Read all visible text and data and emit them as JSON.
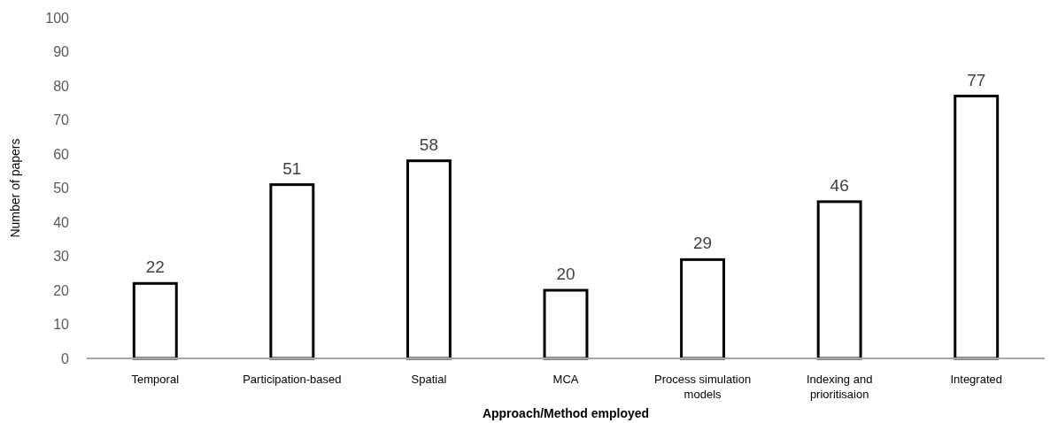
{
  "chart_data": {
    "type": "bar",
    "xlabel": "Approach/Method employed",
    "ylabel": "Number of papers",
    "categories": [
      "Temporal",
      "Participation-based",
      "Spatial",
      "MCA",
      "Process simulation models",
      "Indexing and prioritisaion",
      "Integrated"
    ],
    "values": [
      22,
      51,
      58,
      20,
      29,
      46,
      77
    ],
    "color": "#ffffff",
    "ylim": [
      0,
      100
    ],
    "yticks": [
      0,
      10,
      20,
      30,
      40,
      50,
      60,
      70,
      80,
      90,
      100
    ],
    "data_labels": true,
    "grid": false
  }
}
